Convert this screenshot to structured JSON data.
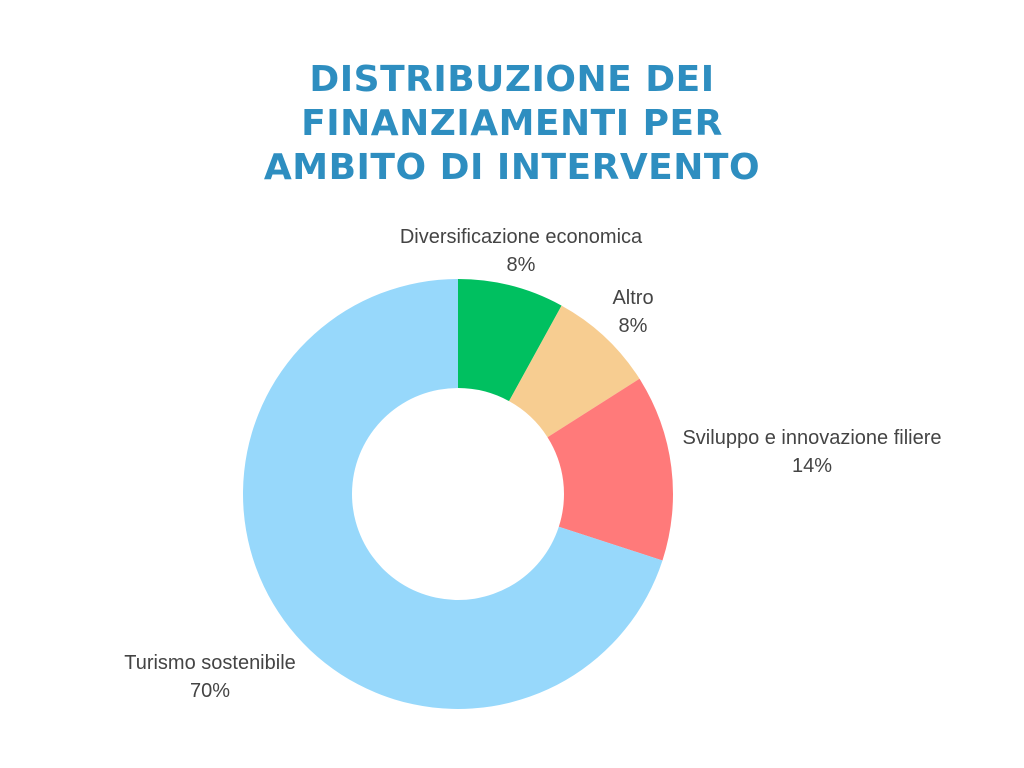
{
  "chart_data": {
    "type": "pie",
    "title": "DISTRIBUZIONE DEI FINANZIAMENTI PER AMBITO DI INTERVENTO",
    "title_lines": [
      "DISTRIBUZIONE DEI",
      "FINANZIAMENTI PER",
      "AMBITO DI INTERVENTO"
    ],
    "categories": [
      "Diversificazione economica",
      "Altro",
      "Sviluppo e innovazione filiere",
      "Turismo sostenibile"
    ],
    "values": [
      8,
      8,
      14,
      70
    ],
    "value_labels": [
      "8%",
      "8%",
      "14%",
      "70%"
    ],
    "colors": [
      "#00c060",
      "#f7cd91",
      "#ff7a7a",
      "#97d8fb"
    ],
    "donut": true,
    "legend": "none"
  },
  "theme": {
    "title_color": "#2e8ec0",
    "label_color": "#444444"
  }
}
